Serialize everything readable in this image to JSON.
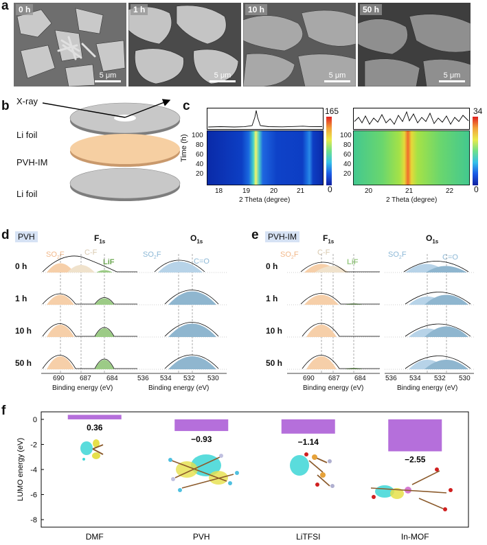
{
  "panel_a": {
    "label": "a",
    "images": [
      {
        "time": "0 h",
        "scale": "5 μm"
      },
      {
        "time": "1 h",
        "scale": "5 μm"
      },
      {
        "time": "10 h",
        "scale": "5 μm"
      },
      {
        "time": "50 h",
        "scale": "5 μm"
      }
    ]
  },
  "panel_b": {
    "label": "b",
    "xray": "X-ray",
    "layers": [
      "Li foil",
      "PVH-IM",
      "Li foil"
    ]
  },
  "panel_c": {
    "label": "c",
    "ylabel": "Time (h)",
    "left": {
      "xlabel": "2 Theta (degree)",
      "xticks": [
        "18",
        "19",
        "20",
        "21"
      ],
      "yticks": [
        "20",
        "40",
        "60",
        "80",
        "100"
      ],
      "cbar_max": "165",
      "cbar_min": "0"
    },
    "right": {
      "xlabel": "2 Theta (degree)",
      "xticks": [
        "20",
        "21",
        "22"
      ],
      "yticks": [
        "20",
        "40",
        "60",
        "80",
        "100"
      ],
      "cbar_max": "34",
      "cbar_min": "0"
    }
  },
  "panel_d": {
    "label": "d",
    "tag": "PVH",
    "f1s": {
      "main": "F",
      "sub": "1s",
      "peaks": {
        "so2f_main": "SO",
        "so2f_sub": "2",
        "so2f_end": "F",
        "cf": "C-F",
        "lif": "LiF"
      },
      "xticks": [
        "690",
        "687",
        "684"
      ],
      "xlabel": "Binding energy (eV)"
    },
    "o1s": {
      "main": "O",
      "sub": "1s",
      "peaks": {
        "so2f_main": "SO",
        "so2f_sub": "2",
        "so2f_end": "F",
        "co": "C=O"
      },
      "xticks": [
        "536",
        "534",
        "532",
        "530"
      ],
      "xlabel": "Binding energy (eV)"
    },
    "rows": [
      "0 h",
      "1 h",
      "10 h",
      "50 h"
    ]
  },
  "panel_e": {
    "label": "e",
    "tag": "PVH-IM",
    "f1s": {
      "main": "F",
      "sub": "1s",
      "peaks": {
        "so2f_main": "SO",
        "so2f_sub": "2",
        "so2f_end": "F",
        "cf": "C-F",
        "lif": "LiF"
      },
      "xticks": [
        "690",
        "687",
        "684"
      ],
      "xlabel": "Binding energy (eV)"
    },
    "o1s": {
      "main": "O",
      "sub": "1s",
      "peaks": {
        "so2f_main": "SO",
        "so2f_sub": "2",
        "so2f_end": "F",
        "co": "C=O"
      },
      "xticks": [
        "536",
        "534",
        "532",
        "530"
      ],
      "xlabel": "Binding energy (eV)"
    },
    "rows": [
      "0 h",
      "1 h",
      "10 h",
      "50 h"
    ]
  },
  "panel_f": {
    "label": "f"
  },
  "chart_data": {
    "type": "bar",
    "title": "",
    "categories": [
      "DMF",
      "PVH",
      "LiTFSI",
      "In-MOF"
    ],
    "values": [
      0.36,
      -0.93,
      -1.14,
      -2.55
    ],
    "value_labels": [
      "0.36",
      "−0.93",
      "−1.14",
      "−2.55"
    ],
    "xlabel": "",
    "ylabel": "LUMO energy (eV)",
    "ylim": [
      -8.6,
      0.6
    ],
    "yticks": [
      "0",
      "-2",
      "-4",
      "-6",
      "-8"
    ],
    "bar_color": "#b56fdb"
  }
}
